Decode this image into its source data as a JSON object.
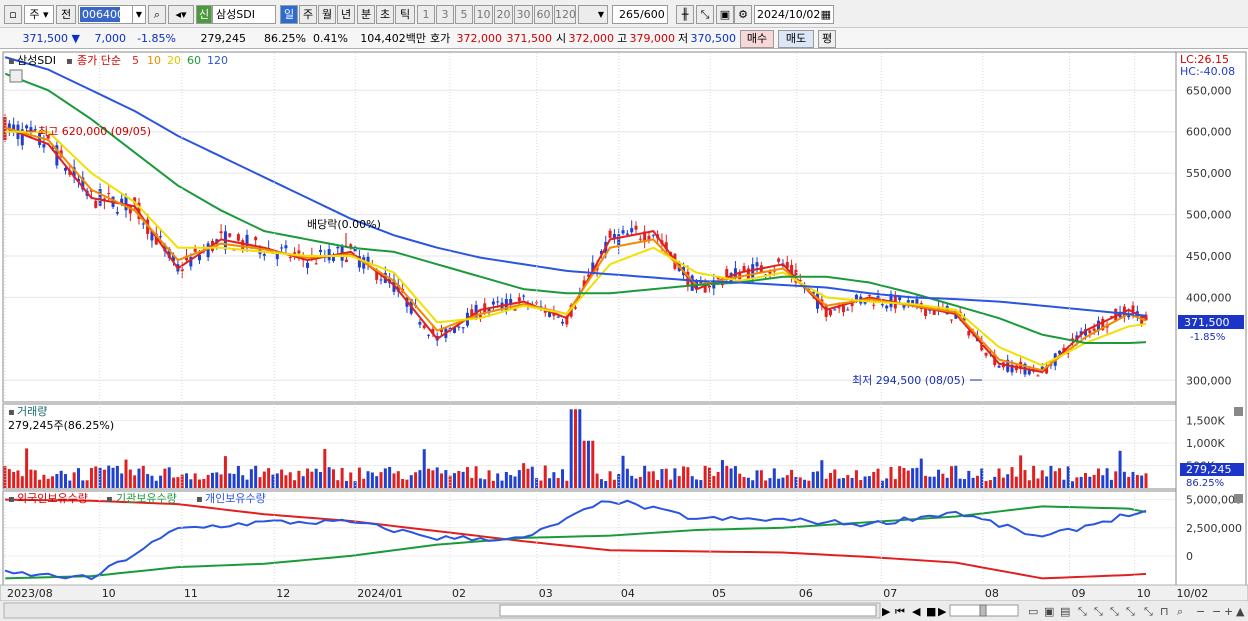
{
  "toolbar": {
    "period_type": "주",
    "prev_label": "전",
    "code": "006400",
    "badge": "신",
    "name": "삼성SDI",
    "intervals": [
      "일",
      "주",
      "월",
      "년",
      "분",
      "초",
      "틱"
    ],
    "selected_interval": "일",
    "steps": [
      "1",
      "3",
      "5",
      "10",
      "20",
      "30",
      "60",
      "120"
    ],
    "count": "265",
    "count_total": "/600",
    "date": "2024/10/02"
  },
  "quote": {
    "price": "371,500",
    "arrow": "▼",
    "change": "7,000",
    "change_pct": "-1.85%",
    "volume": "279,245",
    "volume_ratio": "86.25%",
    "turnover_pct": "0.41%",
    "amount": "104,402백만",
    "ask_label": "호가",
    "ask": "372,000",
    "bid": "371,500",
    "open_label": "시",
    "open": "372,000",
    "high_label": "고",
    "high": "379,000",
    "low_label": "저",
    "low": "370,500",
    "buy_label": "매수",
    "sell_label": "매도",
    "eval_label": "평"
  },
  "colors": {
    "ma5": "#e02020",
    "ma10": "#f08a00",
    "ma20": "#f0e000",
    "ma60": "#1a9a3a",
    "ma120": "#2a55e0",
    "up": "#e02020",
    "down": "#2040d0",
    "foreign": "#e02020",
    "inst": "#1a9a3a",
    "indiv": "#2a55e0"
  },
  "chart_data": [
    {
      "type": "line",
      "name": "price",
      "title": "삼성SDI",
      "legend": [
        "종가 단순",
        "5",
        "10",
        "20",
        "60",
        "120"
      ],
      "x_ticks": [
        "2023/08",
        "10",
        "11",
        "12",
        "2024/01",
        "02",
        "03",
        "04",
        "05",
        "06",
        "07",
        "08",
        "09",
        "10",
        "10/02"
      ],
      "y_ticks": [
        "650,000",
        "600,000",
        "550,000",
        "500,000",
        "450,000",
        "400,000",
        "300,000"
      ],
      "ylim": [
        275000,
        695000
      ],
      "current_price_label": "371,500",
      "current_change_label": "-1.85%",
      "lc_label": "LC:26.15",
      "hc_label": "HC:-40.08",
      "annotations": {
        "high": "최고 620,000 (09/05)",
        "low": "최저 294,500 (08/05)",
        "ex_dividend": "배당락(0.00%)"
      },
      "series": [
        {
          "name": "5",
          "x": [
            0,
            10,
            20,
            30,
            40,
            50,
            60,
            70,
            80,
            90,
            100,
            110,
            120,
            130,
            140,
            150,
            160,
            170,
            180,
            190,
            200,
            210,
            220,
            230,
            240,
            250,
            260,
            264
          ],
          "values": [
            605000,
            585000,
            520000,
            510000,
            435000,
            470000,
            460000,
            445000,
            455000,
            415000,
            350000,
            385000,
            395000,
            375000,
            470000,
            480000,
            410000,
            430000,
            440000,
            385000,
            400000,
            390000,
            380000,
            320000,
            310000,
            360000,
            385000,
            375000
          ]
        },
        {
          "name": "10",
          "x": [
            0,
            10,
            20,
            30,
            40,
            50,
            60,
            70,
            80,
            90,
            100,
            110,
            120,
            130,
            140,
            150,
            160,
            170,
            180,
            190,
            200,
            210,
            220,
            230,
            240,
            250,
            260,
            264
          ],
          "values": [
            605000,
            590000,
            530000,
            505000,
            445000,
            465000,
            458000,
            448000,
            452000,
            420000,
            360000,
            380000,
            392000,
            380000,
            460000,
            470000,
            415000,
            425000,
            435000,
            390000,
            398000,
            390000,
            382000,
            325000,
            312000,
            352000,
            380000,
            372000
          ]
        },
        {
          "name": "20",
          "x": [
            0,
            10,
            20,
            30,
            40,
            50,
            60,
            70,
            80,
            90,
            100,
            110,
            120,
            130,
            140,
            150,
            160,
            170,
            180,
            190,
            200,
            210,
            220,
            230,
            240,
            250,
            260,
            264
          ],
          "values": [
            600000,
            600000,
            550000,
            515000,
            460000,
            460000,
            455000,
            450000,
            450000,
            430000,
            370000,
            375000,
            390000,
            380000,
            440000,
            460000,
            430000,
            420000,
            430000,
            400000,
            395000,
            392000,
            385000,
            340000,
            318000,
            345000,
            365000,
            368000
          ]
        },
        {
          "name": "60",
          "x": [
            0,
            10,
            20,
            30,
            40,
            50,
            60,
            70,
            80,
            90,
            100,
            110,
            120,
            130,
            140,
            150,
            160,
            170,
            180,
            190,
            200,
            210,
            220,
            230,
            240,
            250,
            260,
            264
          ],
          "values": [
            670000,
            650000,
            615000,
            575000,
            535000,
            505000,
            480000,
            470000,
            460000,
            455000,
            440000,
            425000,
            410000,
            405000,
            405000,
            410000,
            415000,
            418000,
            425000,
            425000,
            418000,
            405000,
            390000,
            375000,
            355000,
            345000,
            345000,
            346000
          ]
        },
        {
          "name": "120",
          "x": [
            0,
            10,
            20,
            30,
            40,
            50,
            60,
            70,
            80,
            90,
            100,
            110,
            120,
            130,
            140,
            150,
            160,
            170,
            180,
            190,
            200,
            210,
            220,
            230,
            240,
            250,
            260,
            264
          ],
          "values": [
            690000,
            675000,
            650000,
            625000,
            595000,
            570000,
            545000,
            520000,
            495000,
            475000,
            460000,
            448000,
            440000,
            432000,
            428000,
            424000,
            420000,
            418000,
            415000,
            412000,
            405000,
            400000,
            398000,
            395000,
            390000,
            385000,
            380000,
            378000
          ]
        }
      ]
    },
    {
      "type": "bar",
      "name": "volume",
      "title": "거래량",
      "value_label": "279,245주(86.25%)",
      "y_ticks": [
        "1,500K",
        "1,000K",
        "500K"
      ],
      "ylim": [
        0,
        1800000
      ],
      "current_label": "279,245",
      "current_ratio_label": "86.25%"
    },
    {
      "type": "line",
      "name": "holdings",
      "legend": [
        "외국인보유수량",
        "기관보유수량",
        "개인보유수량"
      ],
      "y_ticks": [
        "5,000,000",
        "2,500,000",
        "0"
      ],
      "ylim": [
        -2500000,
        5500000
      ],
      "series": [
        {
          "name": "외국인보유수량",
          "x": [
            0,
            20,
            40,
            60,
            80,
            100,
            120,
            140,
            160,
            180,
            200,
            220,
            240,
            260,
            264
          ],
          "values": [
            5000000,
            4900000,
            4600000,
            3700000,
            3100000,
            2200000,
            1300000,
            500000,
            400000,
            300000,
            -100000,
            -600000,
            -2000000,
            -1700000,
            -1600000
          ]
        },
        {
          "name": "기관보유수량",
          "x": [
            0,
            20,
            40,
            60,
            80,
            100,
            120,
            140,
            160,
            180,
            200,
            220,
            240,
            260,
            264
          ],
          "values": [
            -2000000,
            -1800000,
            -1000000,
            -700000,
            0,
            1000000,
            1600000,
            1800000,
            2300000,
            2500000,
            3000000,
            3500000,
            4400000,
            4200000,
            3900000
          ]
        },
        {
          "name": "개인보유수량",
          "x": [
            0,
            20,
            40,
            60,
            80,
            100,
            120,
            140,
            160,
            180,
            200,
            220,
            240,
            260,
            264
          ],
          "values": [
            -1500000,
            -2000000,
            2400000,
            3000000,
            3000000,
            1600000,
            1500000,
            5000000,
            3300000,
            3200000,
            2800000,
            3900000,
            1600000,
            3700000,
            3900000
          ]
        }
      ]
    }
  ]
}
